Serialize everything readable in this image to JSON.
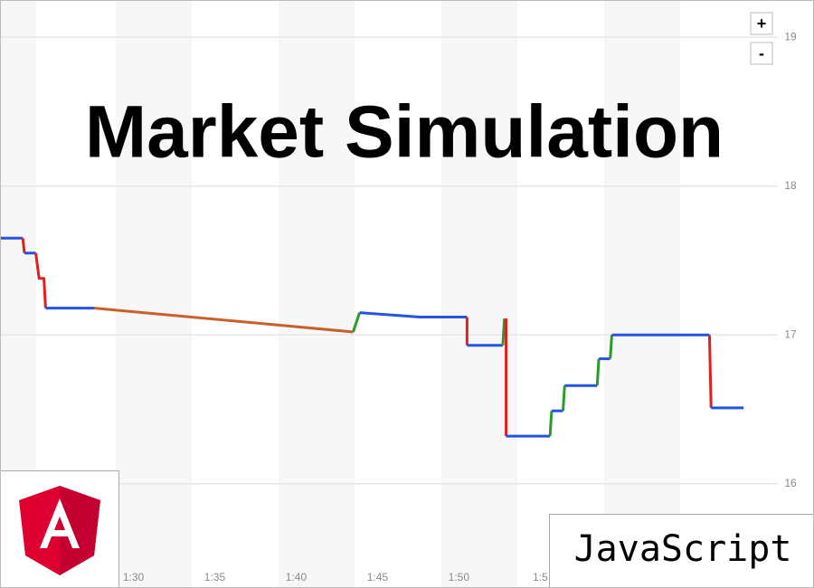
{
  "chart_data": {
    "type": "line",
    "title": "Market Simulation",
    "badge": "JavaScript",
    "zoom_buttons": [
      "+",
      "-"
    ],
    "xlim": [
      81.8,
      129.6
    ],
    "ylim": [
      15.3,
      19.25
    ],
    "yticks": [
      16,
      17,
      18,
      19
    ],
    "xticks": [
      {
        "value": 90,
        "label": "1:30"
      },
      {
        "value": 95,
        "label": "1:35"
      },
      {
        "value": 100,
        "label": "1:40"
      },
      {
        "value": 105,
        "label": "1:45"
      },
      {
        "value": 110,
        "label": "1:50"
      },
      {
        "value": 115,
        "label": "1:5"
      }
    ],
    "grid": true,
    "series": [
      {
        "color": "#2453e0",
        "x": [
          81.8,
          83.2
        ],
        "values": [
          17.65,
          17.65
        ]
      },
      {
        "color": "#e0201c",
        "x": [
          83.2,
          83.3
        ],
        "values": [
          17.65,
          17.55
        ]
      },
      {
        "color": "#2453e0",
        "x": [
          83.3,
          84.0
        ],
        "values": [
          17.55,
          17.55
        ]
      },
      {
        "color": "#e0201c",
        "x": [
          84.0,
          84.2,
          84.5,
          84.6
        ],
        "values": [
          17.55,
          17.38,
          17.38,
          17.18
        ]
      },
      {
        "color": "#2453e0",
        "x": [
          84.6,
          87.6
        ],
        "values": [
          17.18,
          17.18
        ]
      },
      {
        "color": "#c8602a",
        "x": [
          87.6,
          103.5
        ],
        "values": [
          17.18,
          17.02
        ]
      },
      {
        "color": "#2a9a2a",
        "x": [
          103.5,
          103.9
        ],
        "values": [
          17.02,
          17.15
        ]
      },
      {
        "color": "#2453e0",
        "x": [
          103.9,
          107.6,
          110.5
        ],
        "values": [
          17.15,
          17.12,
          17.12
        ]
      },
      {
        "color": "#e0201c",
        "x": [
          110.5,
          110.5
        ],
        "values": [
          17.12,
          16.93
        ]
      },
      {
        "color": "#2453e0",
        "x": [
          110.5,
          112.7
        ],
        "values": [
          16.93,
          16.93
        ]
      },
      {
        "color": "#2a9a2a",
        "x": [
          112.7,
          112.8
        ],
        "values": [
          16.93,
          17.11
        ]
      },
      {
        "color": "#e0201c",
        "x": [
          112.9,
          112.9
        ],
        "values": [
          17.11,
          16.32
        ]
      },
      {
        "color": "#2453e0",
        "x": [
          112.9,
          115.6
        ],
        "values": [
          16.32,
          16.32
        ]
      },
      {
        "color": "#2a9a2a",
        "x": [
          115.6,
          115.7
        ],
        "values": [
          16.32,
          16.49
        ]
      },
      {
        "color": "#2453e0",
        "x": [
          115.7,
          116.4
        ],
        "values": [
          16.49,
          16.49
        ]
      },
      {
        "color": "#2a9a2a",
        "x": [
          116.4,
          116.5
        ],
        "values": [
          16.49,
          16.66
        ]
      },
      {
        "color": "#2453e0",
        "x": [
          116.5,
          118.5
        ],
        "values": [
          16.66,
          16.66
        ]
      },
      {
        "color": "#2a9a2a",
        "x": [
          118.5,
          118.6
        ],
        "values": [
          16.66,
          16.84
        ]
      },
      {
        "color": "#2453e0",
        "x": [
          118.6,
          119.3
        ],
        "values": [
          16.84,
          16.84
        ]
      },
      {
        "color": "#2a9a2a",
        "x": [
          119.3,
          119.4
        ],
        "values": [
          16.84,
          17.0
        ]
      },
      {
        "color": "#2453e0",
        "x": [
          119.4,
          125.4
        ],
        "values": [
          17.0,
          17.0
        ]
      },
      {
        "color": "#e0201c",
        "x": [
          125.4,
          125.5
        ],
        "values": [
          17.0,
          16.51
        ]
      },
      {
        "color": "#2453e0",
        "x": [
          125.5,
          127.5
        ],
        "values": [
          16.51,
          16.51
        ]
      }
    ]
  }
}
